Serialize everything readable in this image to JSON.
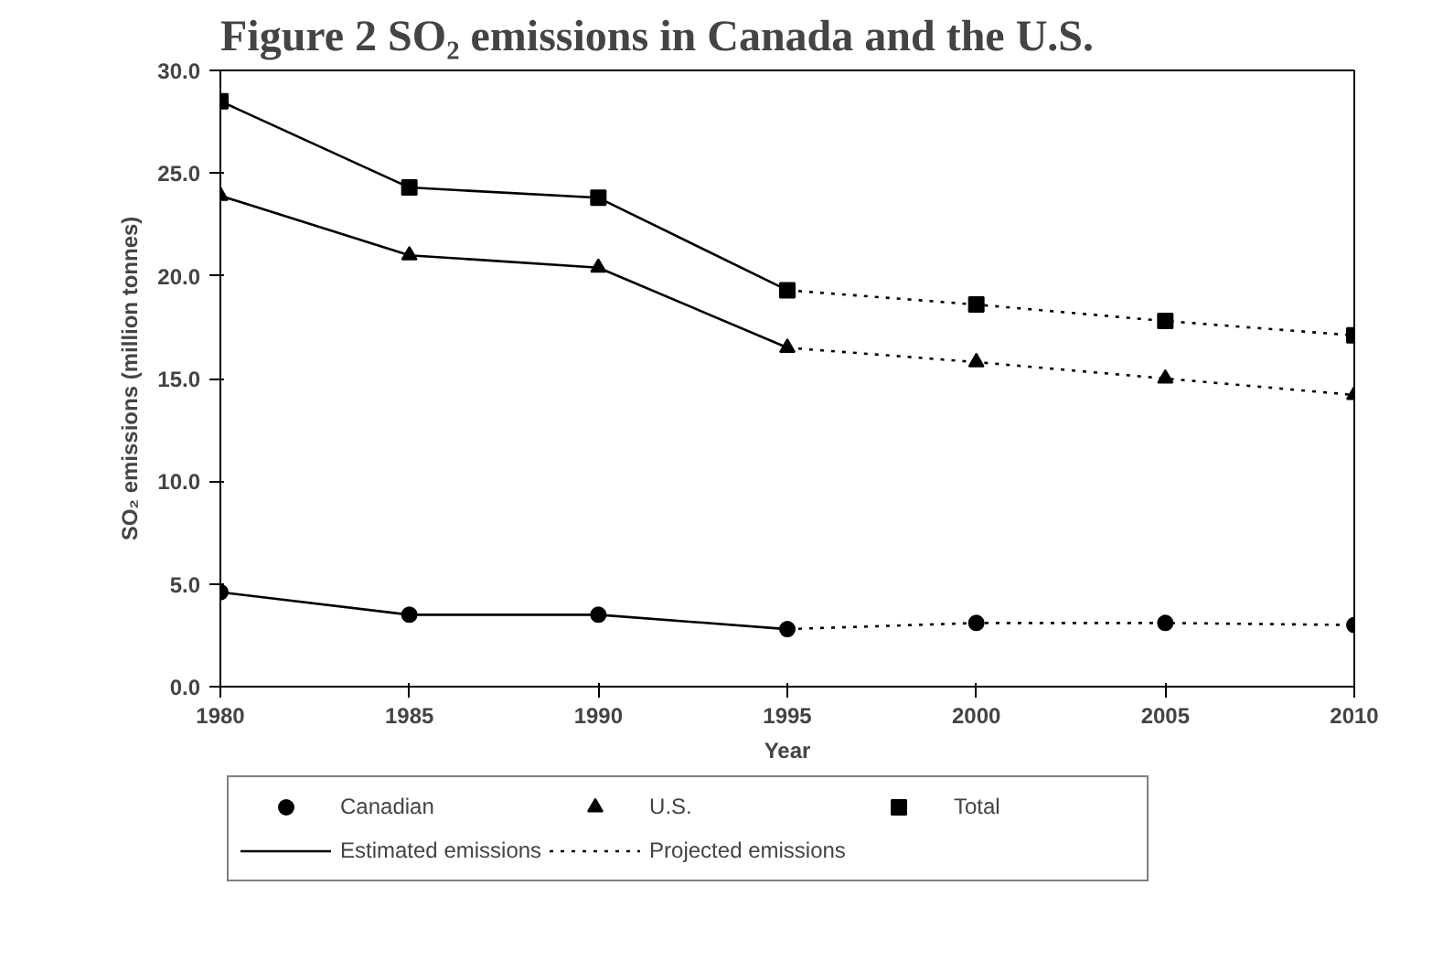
{
  "chart_data": {
    "type": "line",
    "title": "Figure 2   SO₂ emissions in Canada and the U.S.",
    "xlabel": "Year",
    "ylabel": "SO₂ emissions (million tonnes)",
    "x": [
      1980,
      1985,
      1990,
      1995,
      2000,
      2005,
      2010
    ],
    "xlim": [
      1980,
      2010
    ],
    "xticks": [
      1980,
      1985,
      1990,
      1995,
      2000,
      2005,
      2010
    ],
    "ylim": [
      0,
      30
    ],
    "yticks": [
      {
        "value": 0,
        "label": "0.0"
      },
      {
        "value": 5,
        "label": "5.0"
      },
      {
        "value": 10,
        "label": "10.0"
      },
      {
        "value": 15,
        "label": "15.0"
      },
      {
        "value": 20,
        "label": "20.0"
      },
      {
        "value": 25,
        "label": "25.0"
      },
      {
        "value": 30,
        "label": "30.0"
      }
    ],
    "grid": false,
    "legend": "bottom",
    "series": [
      {
        "name": "Canadian",
        "type": "scatter",
        "marker": "circle",
        "color": "#000000",
        "values": [
          4.6,
          3.5,
          3.5,
          2.8,
          3.1,
          3.1,
          3.0
        ]
      },
      {
        "name": "U.S.",
        "type": "scatter",
        "marker": "triangle",
        "color": "#000000",
        "values": [
          23.9,
          21.0,
          20.4,
          16.5,
          15.8,
          15.0,
          14.2
        ]
      },
      {
        "name": "Total",
        "type": "scatter",
        "marker": "square",
        "color": "#000000",
        "values": [
          28.5,
          24.3,
          23.8,
          19.3,
          18.6,
          17.8,
          17.1
        ]
      },
      {
        "name": "Estimated emissions",
        "line_style": "solid",
        "color": "#000000",
        "values": [
          4.6,
          3.5,
          3.5,
          2.8,
          null,
          null,
          null
        ]
      },
      {
        "line_style": "solid",
        "color": "#000000",
        "values": [
          23.9,
          21.0,
          20.4,
          16.5,
          null,
          null,
          null
        ]
      },
      {
        "line_style": "solid",
        "color": "#000000",
        "values": [
          28.5,
          24.3,
          23.8,
          19.3,
          null,
          null,
          null
        ]
      },
      {
        "name": "Projected emissions",
        "line_style": "dotted",
        "color": "#000000",
        "values": [
          null,
          null,
          null,
          2.8,
          3.1,
          3.1,
          3.0
        ]
      },
      {
        "line_style": "dotted",
        "color": "#000000",
        "values": [
          null,
          null,
          null,
          16.5,
          15.8,
          15.0,
          14.2
        ]
      },
      {
        "line_style": "dotted",
        "color": "#000000",
        "values": [
          null,
          null,
          null,
          19.3,
          18.6,
          17.8,
          17.1
        ]
      }
    ]
  }
}
